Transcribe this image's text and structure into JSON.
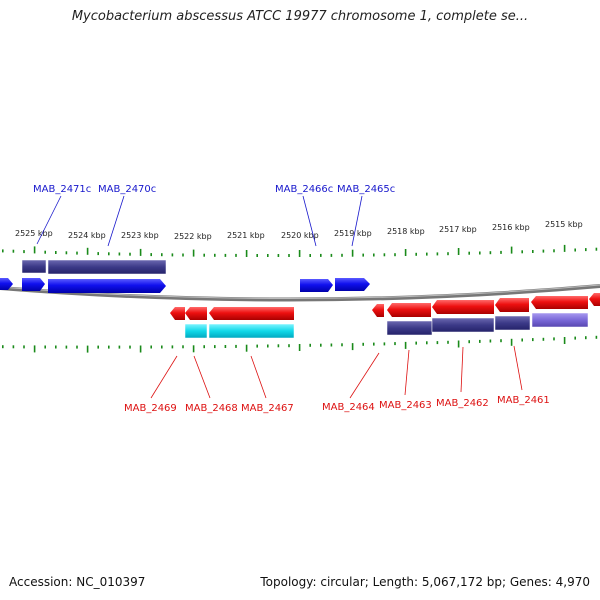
{
  "title": "Mycobacterium abscessus ATCC 19977 chromosome 1, complete se...",
  "footer": {
    "accession": "Accession: NC_010397",
    "topology": "Topology: circular; Length: 5,067,172 bp; Genes: 4,970"
  },
  "scale_labels": [
    "2525 kbp",
    "2524 kbp",
    "2523 kbp",
    "2522 kbp",
    "2521 kbp",
    "2520 kbp",
    "2519 kbp",
    "2518 kbp",
    "2517 kbp",
    "2516 kbp",
    "2515 kbp"
  ],
  "forward_genes": [
    "MAB_2471c",
    "MAB_2470c",
    "MAB_2466c",
    "MAB_2465c"
  ],
  "reverse_genes": [
    "MAB_2469",
    "MAB_2468",
    "MAB_2467",
    "MAB_2464",
    "MAB_2463",
    "MAB_2462",
    "MAB_2461"
  ],
  "colors": {
    "forward_gene": "#1010ee",
    "reverse_gene": "#ee1010",
    "forward_cds": "#3c3a88",
    "reverse_cds_cyan": "#10d8e8",
    "reverse_cds_violet": "#7a68d8",
    "tick": "#1a8a1a",
    "backbone": "#8a8a8a"
  }
}
